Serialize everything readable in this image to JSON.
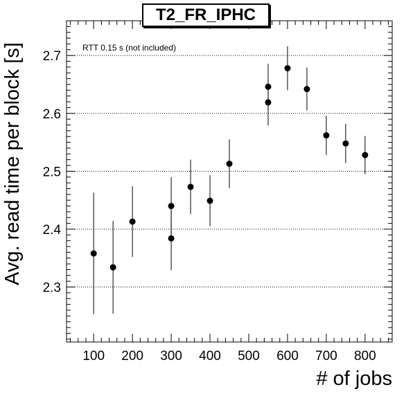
{
  "chart_data": {
    "type": "scatter",
    "title": "T2_FR_IPHC",
    "xlabel": "# of jobs",
    "ylabel": "Avg. read time per block [s]",
    "annotation": "RTT 0.15 s (not included)",
    "xlim": [
      30,
      870
    ],
    "ylim": [
      2.205,
      2.76
    ],
    "xticks": [
      100,
      200,
      300,
      400,
      500,
      600,
      700,
      800
    ],
    "xtick_labels": [
      "100",
      "200",
      "300",
      "400",
      "500",
      "600",
      "700",
      "800"
    ],
    "yticks": [
      2.3,
      2.4,
      2.5,
      2.6,
      2.7
    ],
    "ytick_labels": [
      "2.3",
      "2.4",
      "2.5",
      "2.6",
      "2.7"
    ],
    "grid": "horizontal-dotted",
    "points": [
      {
        "x": 100,
        "y": 2.358,
        "err": 0.105
      },
      {
        "x": 150,
        "y": 2.334,
        "err": 0.08
      },
      {
        "x": 200,
        "y": 2.413,
        "err": 0.061
      },
      {
        "x": 300,
        "y": 2.44,
        "err": 0.05
      },
      {
        "x": 300,
        "y": 2.384,
        "err": 0.055
      },
      {
        "x": 350,
        "y": 2.473,
        "err": 0.047
      },
      {
        "x": 400,
        "y": 2.449,
        "err": 0.044
      },
      {
        "x": 450,
        "y": 2.513,
        "err": 0.042
      },
      {
        "x": 550,
        "y": 2.646,
        "err": 0.04
      },
      {
        "x": 550,
        "y": 2.619,
        "err": 0.04
      },
      {
        "x": 600,
        "y": 2.678,
        "err": 0.038
      },
      {
        "x": 650,
        "y": 2.642,
        "err": 0.037
      },
      {
        "x": 700,
        "y": 2.562,
        "err": 0.034
      },
      {
        "x": 750,
        "y": 2.548,
        "err": 0.034
      },
      {
        "x": 800,
        "y": 2.528,
        "err": 0.033
      }
    ]
  }
}
